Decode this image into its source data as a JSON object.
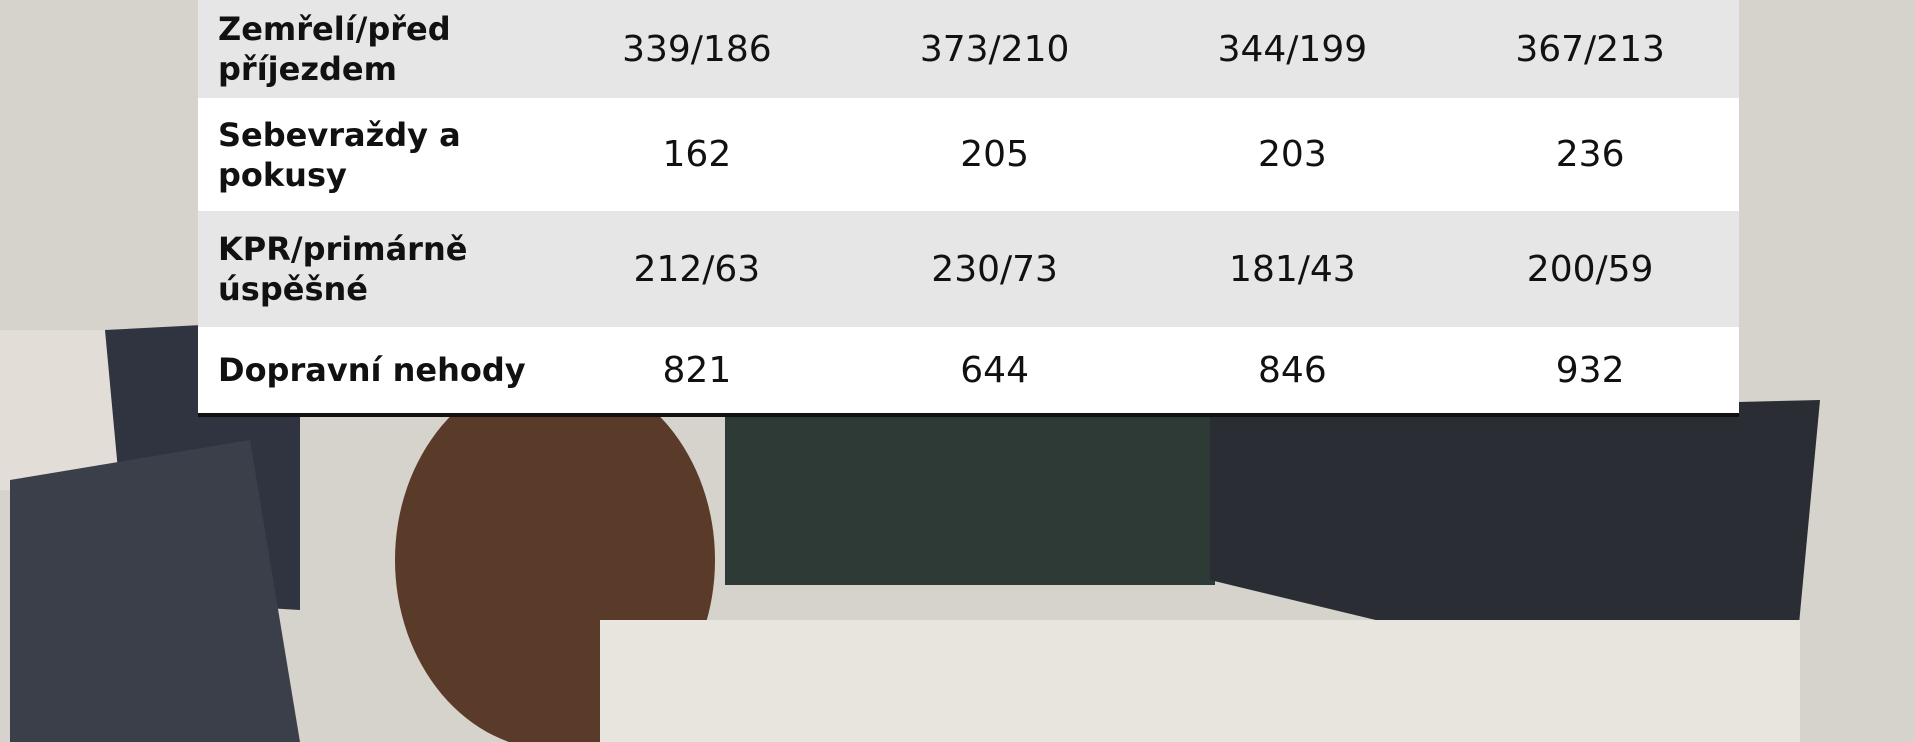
{
  "table": {
    "rows": [
      {
        "label": "Zemřelí/před příjezdem",
        "values": [
          "339/186",
          "373/210",
          "344/199",
          "367/213"
        ]
      },
      {
        "label": "Sebevraždy a pokusy",
        "values": [
          "162",
          "205",
          "203",
          "236"
        ]
      },
      {
        "label": "KPR/primárně úspěšné",
        "values": [
          "212/63",
          "230/73",
          "181/43",
          "200/59"
        ]
      },
      {
        "label": "Dopravní nehody",
        "values": [
          "821",
          "644",
          "846",
          "932"
        ]
      }
    ]
  }
}
